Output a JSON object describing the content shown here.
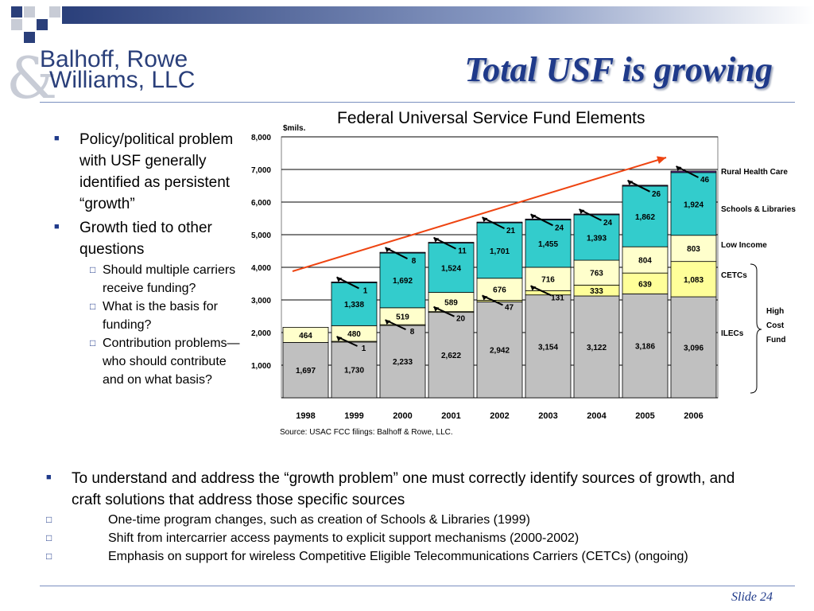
{
  "header": {
    "logo_amp": "&",
    "logo_line1": "Balhoff, Rowe",
    "logo_line2": "Williams, LLC",
    "title": "Total USF is growing"
  },
  "left_bullets": [
    {
      "text": "Policy/political problem with USF generally identified as persistent “growth”",
      "level": 1
    },
    {
      "text": "Growth tied to other questions",
      "level": 1
    },
    {
      "text": "Should multiple carriers receive funding?",
      "level": 2
    },
    {
      "text": "What is the basis for funding?",
      "level": 2
    },
    {
      "text": "Contribution problems—who should contribute and on what basis?",
      "level": 2
    }
  ],
  "bottom_bullets": [
    {
      "text": "To understand and address the “growth problem” one must correctly identify sources of growth, and craft solutions that address those specific sources",
      "level": 1
    },
    {
      "text": "One-time program changes, such as creation of Schools & Libraries (1999)",
      "level": 2
    },
    {
      "text": "Shift from intercarrier access payments to explicit support mechanisms (2000-2002)",
      "level": 2
    },
    {
      "text": "Emphasis on support for wireless Competitive Eligible Telecommunications Carriers (CETCs) (ongoing)",
      "level": 2
    }
  ],
  "footer": {
    "slide": "Slide 24"
  },
  "chart_data": {
    "type": "bar",
    "stacked": true,
    "title": "Federal Universal Service Fund Elements",
    "ylabel": "$mils.",
    "xlabel": "",
    "ylim": [
      0,
      8000
    ],
    "yticks": [
      1000,
      2000,
      3000,
      4000,
      5000,
      6000,
      7000,
      8000
    ],
    "ytick_labels": [
      "1,000",
      "2,000",
      "3,000",
      "4,000",
      "5,000",
      "6,000",
      "7,000",
      "8,000"
    ],
    "grid": true,
    "categories": [
      "1998",
      "1999",
      "2000",
      "2001",
      "2002",
      "2003",
      "2004",
      "2005",
      "2006"
    ],
    "series": [
      {
        "name": "ILECs",
        "color": "#c0c0c0",
        "values": [
          1697,
          1730,
          2233,
          2622,
          2942,
          3154,
          3122,
          3186,
          3096
        ],
        "labels": [
          "1,697",
          "1,730",
          "2,233",
          "2,622",
          "2,942",
          "3,154",
          "3,122",
          "3,186",
          "3,096"
        ]
      },
      {
        "name": "CETCs",
        "color": "#ffff99",
        "values": [
          0,
          1,
          8,
          20,
          47,
          131,
          333,
          639,
          1083
        ],
        "labels": [
          "",
          "1",
          "8",
          "20",
          "47",
          "131",
          "333",
          "639",
          "1,083"
        ]
      },
      {
        "name": "Low Income",
        "color": "#ffffcc",
        "values": [
          464,
          480,
          519,
          589,
          676,
          716,
          763,
          804,
          803
        ],
        "labels": [
          "464",
          "480",
          "519",
          "589",
          "676",
          "716",
          "763",
          "804",
          "803"
        ]
      },
      {
        "name": "Schools & Libraries",
        "color": "#33cccc",
        "values": [
          0,
          1338,
          1692,
          1524,
          1701,
          1455,
          1393,
          1862,
          1924
        ],
        "labels": [
          "",
          "1,338",
          "1,692",
          "1,524",
          "1,701",
          "1,455",
          "1,393",
          "1,862",
          "1,924"
        ]
      },
      {
        "name": "Rural Health Care",
        "color": "#663399",
        "values": [
          0,
          1,
          8,
          11,
          21,
          24,
          24,
          26,
          46
        ],
        "labels": [
          "",
          "1",
          "8",
          "11",
          "21",
          "24",
          "24",
          "26",
          "46"
        ]
      }
    ],
    "legend_position": "right",
    "bracket_label": [
      "High",
      "Cost",
      "Fund"
    ],
    "trend_arrow": true,
    "source": "Source: USAC FCC filings: Balhoff & Rowe, LLC."
  }
}
